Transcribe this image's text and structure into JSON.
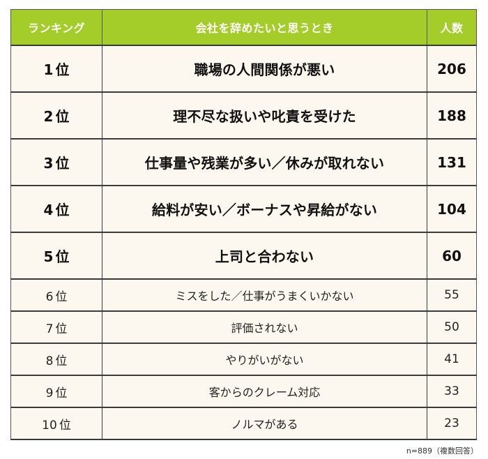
{
  "table": {
    "headers": {
      "rank": "ランキング",
      "reason": "会社を辞めたいと思うとき",
      "count": "人数"
    },
    "header_color": "#a5cd2a",
    "row_background": "#fcf8ef",
    "rows": [
      {
        "rank_num": "1",
        "rank_suffix": "位",
        "reason": "職場の人間関係が悪い",
        "count": "206"
      },
      {
        "rank_num": "2",
        "rank_suffix": "位",
        "reason": "理不尽な扱いや叱責を受けた",
        "count": "188"
      },
      {
        "rank_num": "3",
        "rank_suffix": "位",
        "reason": "仕事量や残業が多い／休みが取れない",
        "count": "131"
      },
      {
        "rank_num": "4",
        "rank_suffix": "位",
        "reason": "給料が安い／ボーナスや昇給がない",
        "count": "104"
      },
      {
        "rank_num": "5",
        "rank_suffix": "位",
        "reason": "上司と合わない",
        "count": "60"
      },
      {
        "rank_num": "6",
        "rank_suffix": "位",
        "reason": "ミスをした／仕事がうまくいかない",
        "count": "55"
      },
      {
        "rank_num": "7",
        "rank_suffix": "位",
        "reason": "評価されない",
        "count": "50"
      },
      {
        "rank_num": "8",
        "rank_suffix": "位",
        "reason": "やりがいがない",
        "count": "41"
      },
      {
        "rank_num": "9",
        "rank_suffix": "位",
        "reason": "客からのクレーム対応",
        "count": "33"
      },
      {
        "rank_num": "10",
        "rank_suffix": "位",
        "reason": "ノルマがある",
        "count": "23"
      }
    ]
  },
  "footnote": "n=889（複数回答）"
}
